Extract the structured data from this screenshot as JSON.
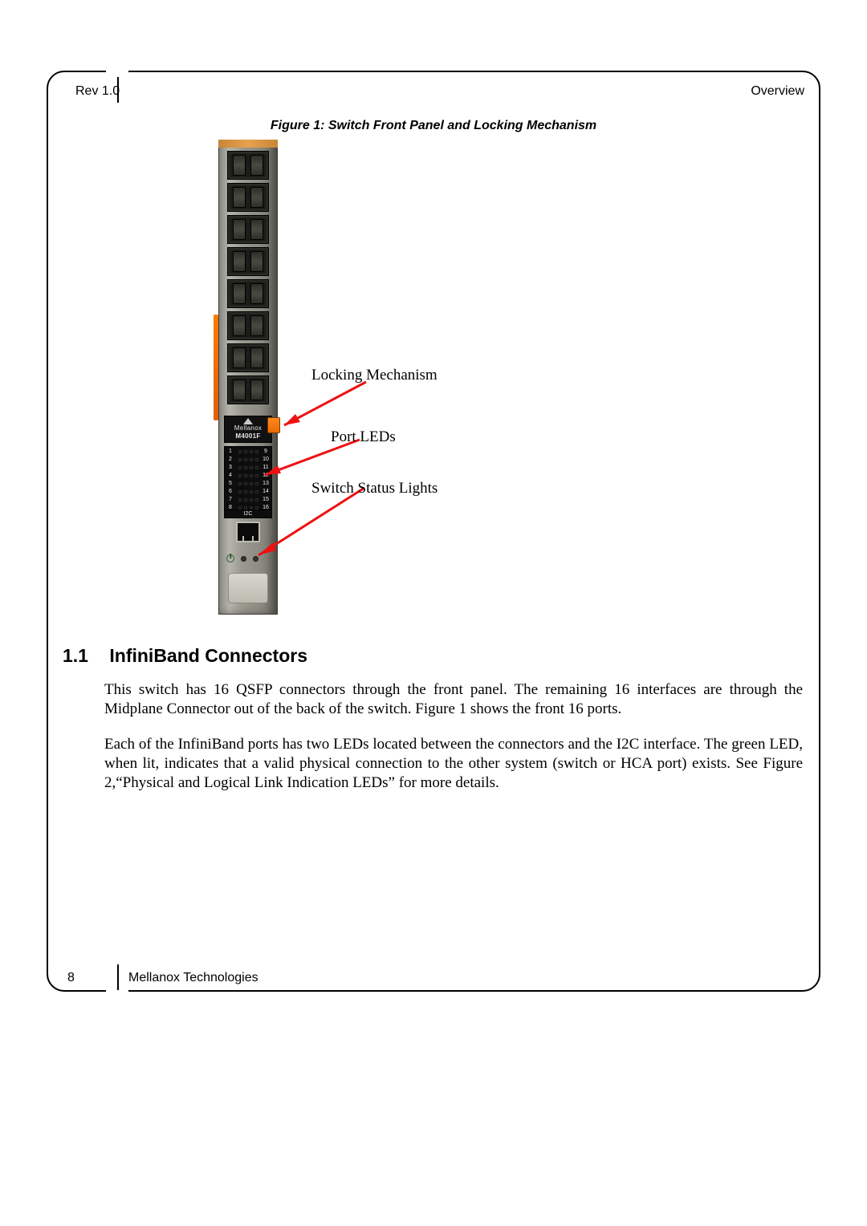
{
  "header": {
    "left": "Rev 1.0",
    "right": "Overview"
  },
  "figure": {
    "caption": "Figure 1: Switch Front Panel and Locking Mechanism",
    "model_line1": "Mellanox",
    "model_line2": "M4001F",
    "i2c_label": "I2C",
    "port_count": 8,
    "led_rows": [
      {
        "left": "1",
        "right": "9"
      },
      {
        "left": "2",
        "right": "10"
      },
      {
        "left": "3",
        "right": "11"
      },
      {
        "left": "4",
        "right": "12"
      },
      {
        "left": "5",
        "right": "13"
      },
      {
        "left": "6",
        "right": "14"
      },
      {
        "left": "7",
        "right": "15"
      },
      {
        "left": "8",
        "right": "16"
      }
    ],
    "callouts": {
      "locking": "Locking Mechanism",
      "port_leds": "Port LEDs",
      "status": "Switch Status Lights"
    }
  },
  "section": {
    "number": "1.1",
    "title": "InfiniBand Connectors",
    "para1": "This switch has 16 QSFP connectors through the front panel. The remaining 16 interfaces are through the Midplane Connector out of the back of the switch. Figure 1 shows the front 16 ports.",
    "para2": "Each of the InfiniBand ports has two LEDs located between the connectors and the I2C interface. The green LED, when lit, indicates that a valid physical connection to the other system (switch or HCA port) exists. See Figure 2,“Physical and Logical Link Indication LEDs” for more details."
  },
  "footer": {
    "page": "8",
    "company": "Mellanox Technologies"
  },
  "colors": {
    "arrow": "#ee1111",
    "orange": "#f07a12"
  }
}
